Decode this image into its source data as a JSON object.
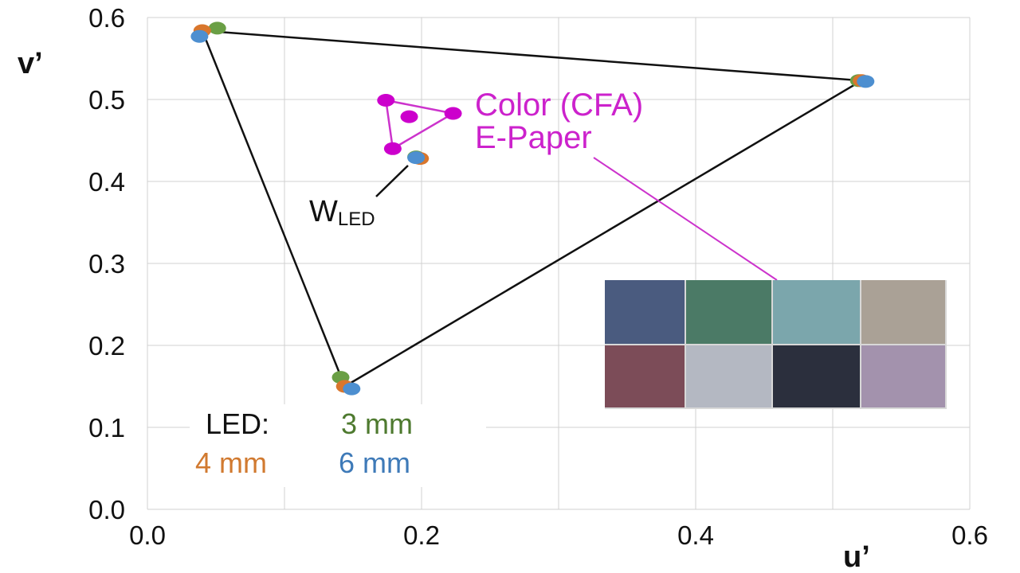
{
  "chart_data": {
    "type": "scatter",
    "xlabel": "u’",
    "ylabel": "v’",
    "xlim": [
      0,
      0.6
    ],
    "ylim": [
      0,
      0.6
    ],
    "x_ticks": [
      0.0,
      0.2,
      0.4,
      0.6
    ],
    "x_tick_labels": [
      "0.0",
      "0.2",
      "0.4",
      "0.6"
    ],
    "y_ticks": [
      0.0,
      0.1,
      0.2,
      0.3,
      0.4,
      0.5,
      0.6
    ],
    "y_tick_labels": [
      "0.0",
      "0.1",
      "0.2",
      "0.3",
      "0.4",
      "0.5",
      "0.6"
    ],
    "grid": true,
    "series": [
      {
        "name": "3 mm",
        "color": "#6a9f45",
        "points": [
          [
            0.051,
            0.587
          ],
          [
            0.141,
            0.161
          ],
          [
            0.519,
            0.523
          ],
          [
            0.196,
            0.43
          ]
        ]
      },
      {
        "name": "4 mm",
        "color": "#d9762c",
        "points": [
          [
            0.04,
            0.584
          ],
          [
            0.144,
            0.15
          ],
          [
            0.521,
            0.523
          ],
          [
            0.199,
            0.428
          ]
        ]
      },
      {
        "name": "6 mm",
        "color": "#4d8fd0",
        "points": [
          [
            0.038,
            0.577
          ],
          [
            0.149,
            0.147
          ],
          [
            0.524,
            0.522
          ],
          [
            0.196,
            0.429
          ]
        ]
      },
      {
        "color": "#cc00cc",
        "points": [
          [
            0.174,
            0.499
          ],
          [
            0.223,
            0.483
          ],
          [
            0.179,
            0.44
          ],
          [
            0.191,
            0.479
          ]
        ]
      }
    ],
    "gamut_led_triangle": [
      [
        0.04,
        0.584
      ],
      [
        0.521,
        0.523
      ],
      [
        0.144,
        0.15
      ]
    ],
    "gamut_cfa_triangle": [
      [
        0.174,
        0.499
      ],
      [
        0.223,
        0.483
      ],
      [
        0.179,
        0.44
      ]
    ],
    "annotations": {
      "cfa_label_line1": "Color (CFA)",
      "cfa_label_line2": "E-Paper",
      "white_point_label": "W",
      "white_point_subscript": "LED"
    },
    "legend": {
      "prefix": "LED:",
      "entries": [
        {
          "label": "3 mm",
          "color": "#4e7a2f"
        },
        {
          "label": "4 mm",
          "color": "#d17a30"
        },
        {
          "label": "6 mm",
          "color": "#3e7ab8"
        }
      ],
      "placement": "bottom-left"
    },
    "colors": {
      "grid": "#d0d0d0",
      "gamut_led": "#111111",
      "gamut_cfa": "#cc33cc",
      "annotation": "#cc22cc"
    }
  },
  "swatches": {
    "rows": [
      [
        "#4a5b7f",
        "#4b7a66",
        "#7ba6ac",
        "#aaa196"
      ],
      [
        "#7c4c58",
        "#b4b8c2",
        "#2b2f3d",
        "#a392ad"
      ]
    ]
  }
}
